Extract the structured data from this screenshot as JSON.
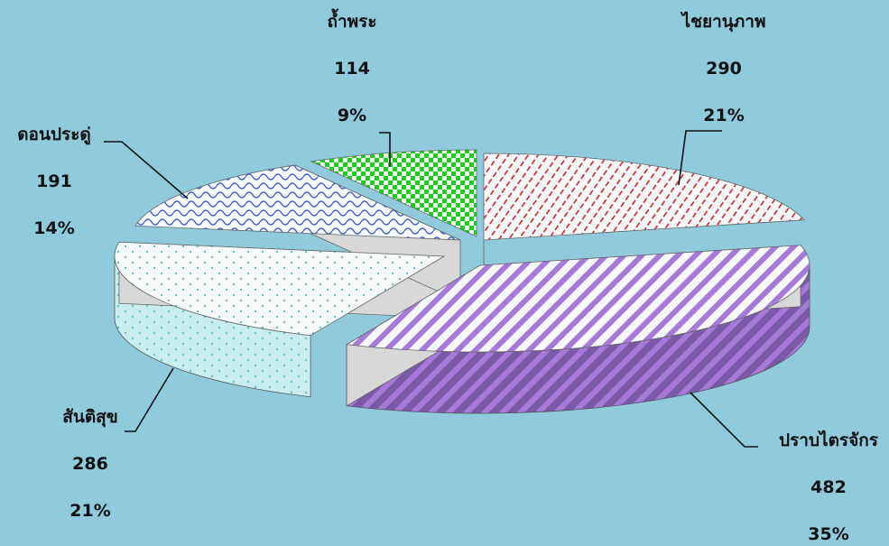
{
  "chart_data": {
    "type": "pie",
    "title": "",
    "categories": [
      "ไชยานุภาพ",
      "ปราบไตรจักร",
      "สันติสุข",
      "ดอนประดู่",
      "ถ้ำพระ"
    ],
    "values": [
      290,
      482,
      286,
      191,
      114
    ],
    "percent_labels": [
      "21%",
      "35%",
      "21%",
      "14%",
      "9%"
    ],
    "colors": [
      "#cc2222",
      "#a77ad9",
      "#5ec4c4",
      "#3f5fd0",
      "#18d018"
    ],
    "side_colors": [
      "#7a0f0f",
      "#7a5aa8",
      "#c9ecee",
      "#24397e",
      "#0e7a0e"
    ],
    "patterns": [
      "diagonal-dashes",
      "diagonal-stripes",
      "dots",
      "waves",
      "checker"
    ],
    "style": "3d-exploded",
    "legend": "none"
  }
}
